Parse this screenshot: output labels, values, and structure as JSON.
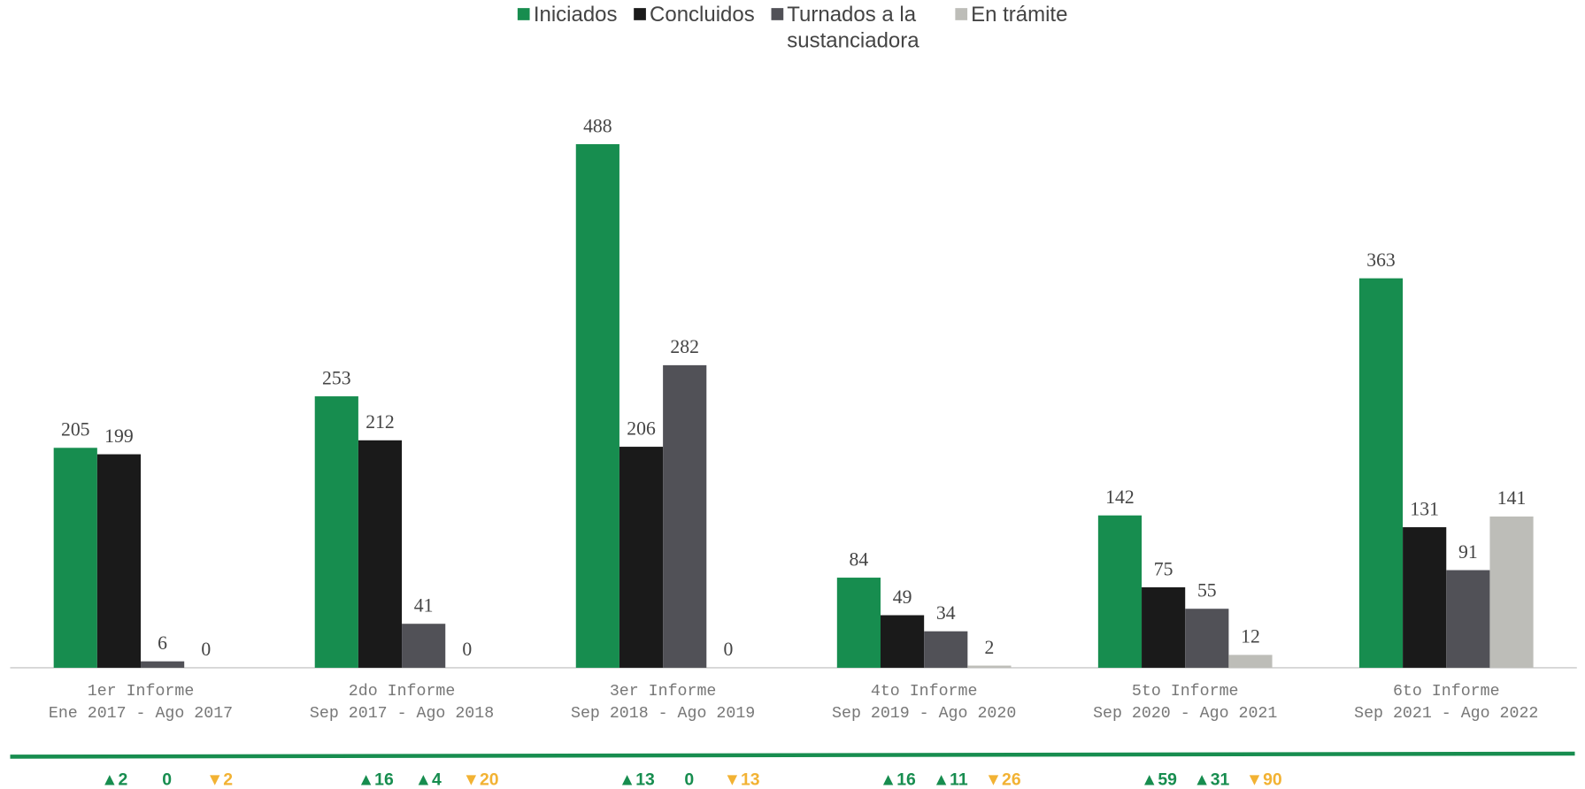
{
  "chart_data": {
    "type": "bar",
    "categories": [
      [
        "1er Informe",
        "Ene 2017 - Ago 2017"
      ],
      [
        "2do Informe",
        "Sep 2017 - Ago 2018"
      ],
      [
        "3er Informe",
        "Sep 2018 - Ago 2019"
      ],
      [
        "4to Informe",
        "Sep 2019 - Ago 2020"
      ],
      [
        "5to Informe",
        "Sep 2020 - Ago 2021"
      ],
      [
        "6to Informe",
        "Sep 2021 - Ago 2022"
      ]
    ],
    "series": [
      {
        "name": "Iniciados",
        "color": "#178d4f",
        "values": [
          205,
          253,
          488,
          84,
          142,
          363
        ]
      },
      {
        "name": "Concluidos",
        "color": "#1a1a1a",
        "values": [
          199,
          212,
          206,
          49,
          75,
          131
        ]
      },
      {
        "name": "Turnados a la sustanciadora",
        "color": "#515157",
        "values": [
          6,
          41,
          282,
          34,
          55,
          91
        ]
      },
      {
        "name": "En trámite",
        "color": "#bdbdb8",
        "values": [
          0,
          0,
          0,
          2,
          12,
          141
        ]
      }
    ],
    "ylim": [
      0,
      548
    ],
    "indicators": [
      [
        {
          "label": "▲2",
          "color": "#178d4f"
        },
        {
          "label": "0",
          "color": "#178d4f"
        },
        {
          "label": "▼2",
          "color": "#f2b233"
        }
      ],
      [
        {
          "label": "▲16",
          "color": "#178d4f"
        },
        {
          "label": "▲4",
          "color": "#178d4f"
        },
        {
          "label": "▼20",
          "color": "#f2b233"
        }
      ],
      [
        {
          "label": "▲13",
          "color": "#178d4f"
        },
        {
          "label": "0",
          "color": "#178d4f"
        },
        {
          "label": "▼13",
          "color": "#f2b233"
        }
      ],
      [
        {
          "label": "▲16",
          "color": "#178d4f"
        },
        {
          "label": "▲11",
          "color": "#178d4f"
        },
        {
          "label": "▼26",
          "color": "#f2b233"
        }
      ],
      [
        {
          "label": "▲59",
          "color": "#178d4f"
        },
        {
          "label": "▲31",
          "color": "#178d4f"
        },
        {
          "label": "▼90",
          "color": "#f2b233"
        }
      ]
    ]
  }
}
